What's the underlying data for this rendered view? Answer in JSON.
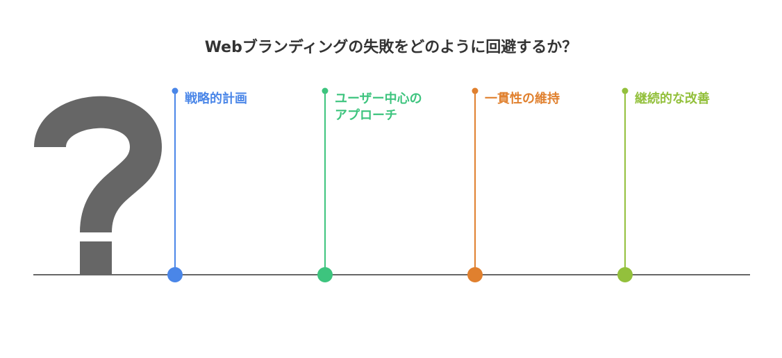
{
  "title": "Webブランディングの失敗をどのように回避するか？",
  "items": [
    {
      "label": "戦略的計画"
    },
    {
      "label": "ユーザー中心のアプローチ"
    },
    {
      "label": "一貫性の維持"
    },
    {
      "label": "継続的な改善"
    }
  ]
}
